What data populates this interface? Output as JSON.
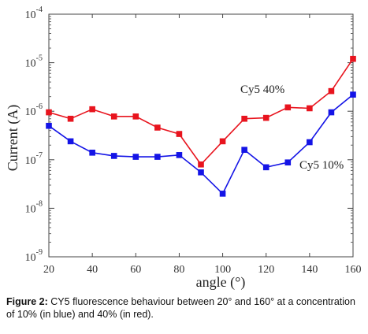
{
  "caption": {
    "label": "Figure 2:",
    "text": "CY5 fluorescence behaviour between 20° and 160° at a concentration of 10% (in blue) and 40% (in red)."
  },
  "chart_data": {
    "type": "line",
    "title": "",
    "xlabel": "angle (°)",
    "ylabel": "Current (A)",
    "yscale": "log",
    "xlim": [
      20,
      160
    ],
    "ylim": [
      1e-09,
      0.0001
    ],
    "xticks": [
      "20",
      "40",
      "60",
      "80",
      "100",
      "120",
      "140",
      "160"
    ],
    "yticks": [
      {
        "base": "10",
        "exp": "-9",
        "value": 1e-09
      },
      {
        "base": "10",
        "exp": "-8",
        "value": 1e-08
      },
      {
        "base": "10",
        "exp": "-7",
        "value": 1e-07
      },
      {
        "base": "10",
        "exp": "-6",
        "value": 1e-06
      },
      {
        "base": "10",
        "exp": "-5",
        "value": 1e-05
      },
      {
        "base": "10",
        "exp": "-4",
        "value": 0.0001
      }
    ],
    "grid": false,
    "series": [
      {
        "name": "Cy5 40%",
        "color": "#e8141e",
        "marker": "square",
        "x": [
          20,
          30,
          40,
          50,
          60,
          70,
          80,
          90,
          100,
          110,
          120,
          130,
          140,
          150,
          160
        ],
        "y": [
          9.5e-07,
          7e-07,
          1.1e-06,
          7.8e-07,
          7.8e-07,
          4.6e-07,
          3.4e-07,
          8e-08,
          2.4e-07,
          7e-07,
          7.3e-07,
          1.2e-06,
          1.15e-06,
          2.6e-06,
          1.2e-05
        ]
      },
      {
        "name": "Cy5 10%",
        "color": "#1414e6",
        "marker": "square",
        "x": [
          20,
          30,
          40,
          50,
          60,
          70,
          80,
          90,
          100,
          110,
          120,
          130,
          140,
          150,
          160
        ],
        "y": [
          5e-07,
          2.4e-07,
          1.4e-07,
          1.2e-07,
          1.15e-07,
          1.15e-07,
          1.25e-07,
          5.5e-08,
          2e-08,
          1.6e-07,
          7e-08,
          8.8e-08,
          2.3e-07,
          9.5e-07,
          2.2e-06
        ]
      }
    ]
  }
}
